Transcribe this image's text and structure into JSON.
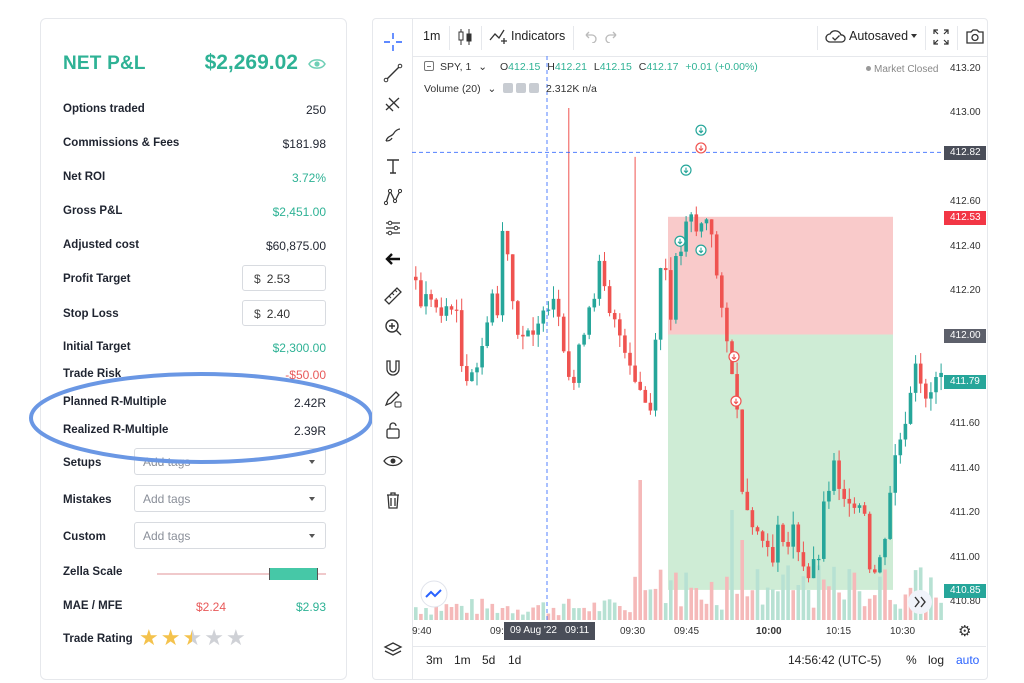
{
  "panel": {
    "title": "NET P&L",
    "net_value": "$2,269.02",
    "rows": [
      {
        "label": "Options traded",
        "value": "250"
      },
      {
        "label": "Commissions & Fees",
        "value": "$181.98"
      },
      {
        "label": "Net ROI",
        "value": "3.72%"
      },
      {
        "label": "Gross P&L",
        "value": "$2,451.00"
      },
      {
        "label": "Adjusted cost",
        "value": "$60,875.00"
      },
      {
        "label": "Profit Target",
        "prefix": "$",
        "value": "2.53"
      },
      {
        "label": "Stop Loss",
        "prefix": "$",
        "value": "2.40"
      },
      {
        "label": "Initial Target",
        "value": "$2,300.00"
      },
      {
        "label": "Trade Risk",
        "value": "-$50.00"
      },
      {
        "label": "Planned R-Multiple",
        "value": "2.42R"
      },
      {
        "label": "Realized R-Multiple",
        "value": "2.39R"
      },
      {
        "label": "Setups",
        "placeholder": "Add tags"
      },
      {
        "label": "Mistakes",
        "placeholder": "Add tags"
      },
      {
        "label": "Custom",
        "placeholder": "Add tags"
      },
      {
        "label": "Zella Scale"
      },
      {
        "label": "MAE / MFE",
        "mae": "$2.24",
        "mfe": "$2.93"
      },
      {
        "label": "Trade Rating"
      }
    ],
    "zella_scale": {
      "fill_start": 0.66,
      "fill_end": 0.95
    },
    "trade_rating": 2.5,
    "colors": {
      "green": "#2eb295",
      "red": "#e85a5a"
    }
  },
  "toolbar": {
    "interval": "1m",
    "indicators_label": "Indicators",
    "autosaved_label": "Autosaved"
  },
  "legend": {
    "symbol": "SPY, 1",
    "o_label": "O",
    "o": "412.15",
    "h_label": "H",
    "h": "412.21",
    "l_label": "L",
    "l": "412.15",
    "c_label": "C",
    "c": "412.17",
    "change": "+0.01 (+0.00%)",
    "volume_label": "Volume (20)",
    "volume_value": "2.312K",
    "volume_na": "n/a",
    "market_status": "Market Closed"
  },
  "bottom_bar": {
    "ranges": [
      "3m",
      "1m",
      "5d",
      "1d"
    ],
    "clock": "14:56:42 (UTC-5)",
    "percent": "%",
    "log": "log",
    "auto": "auto"
  },
  "chart_data": {
    "type": "candlestick",
    "y_ticks": [
      "413.20",
      "413.00",
      "412.80",
      "412.60",
      "412.40",
      "412.20",
      "412.00",
      "411.80",
      "411.60",
      "411.40",
      "411.20",
      "411.00",
      "410.80"
    ],
    "ylim": [
      410.7,
      413.25
    ],
    "x_ticks": [
      "9:40",
      "09:",
      "09:30",
      "09:45",
      "10:00",
      "10:15",
      "10:30"
    ],
    "crosshair_date": "09 Aug '22",
    "crosshair_time": "09:11",
    "crosshair_price": "412.82",
    "price_tags": [
      {
        "label": "412.53",
        "value": 412.53,
        "color": "#f23645"
      },
      {
        "label": "412.00",
        "value": 412.0,
        "color": "#5d606b"
      },
      {
        "label": "411.79",
        "value": 411.79,
        "color": "#26a69a"
      },
      {
        "label": "410.85",
        "value": 410.85,
        "color": "#26a69a"
      }
    ],
    "position_box": {
      "target": 412.53,
      "entry": 412.0,
      "stop": 410.85
    },
    "colors": {
      "up": "#26a69a",
      "down": "#ef5350",
      "profit_zone": "#c9ead0",
      "loss_zone": "#f8c4c4"
    }
  }
}
